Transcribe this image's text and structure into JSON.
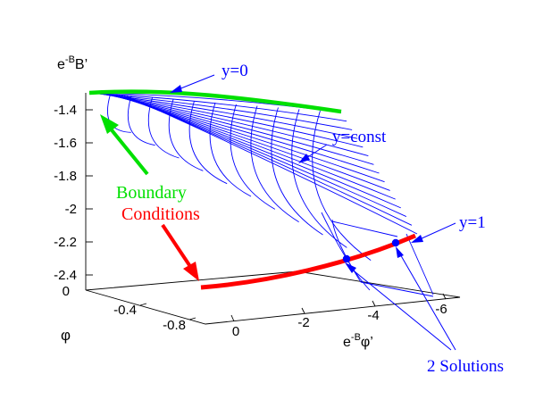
{
  "axes": {
    "z_label_main": "e",
    "z_label_sup": "-B",
    "z_label_tail": "B’",
    "z_ticks": [
      "-1.4",
      "-1.6",
      "-1.8",
      "-2",
      "-2.2",
      "-2.4"
    ],
    "phi_label": "φ",
    "phi_ticks": [
      "0",
      "-0.4",
      "-0.8"
    ],
    "x_label_main": "e",
    "x_label_sup": "-B",
    "x_label_tail": "φ’",
    "x_ticks": [
      "0",
      "-2",
      "-4",
      "-6"
    ]
  },
  "annotations": {
    "y0": "y=0",
    "yconst": "y=const",
    "y1": "y=1",
    "boundary_line1": "Boundary",
    "boundary_line2": "Conditions",
    "solutions": "2 Solutions"
  },
  "colors": {
    "mesh": "#0000ff",
    "annotation": "#0000ff",
    "boundary_top": "#00e000",
    "boundary_bottom": "#ff0000",
    "solution_point": "#0000ff",
    "axes": "#000000"
  }
}
